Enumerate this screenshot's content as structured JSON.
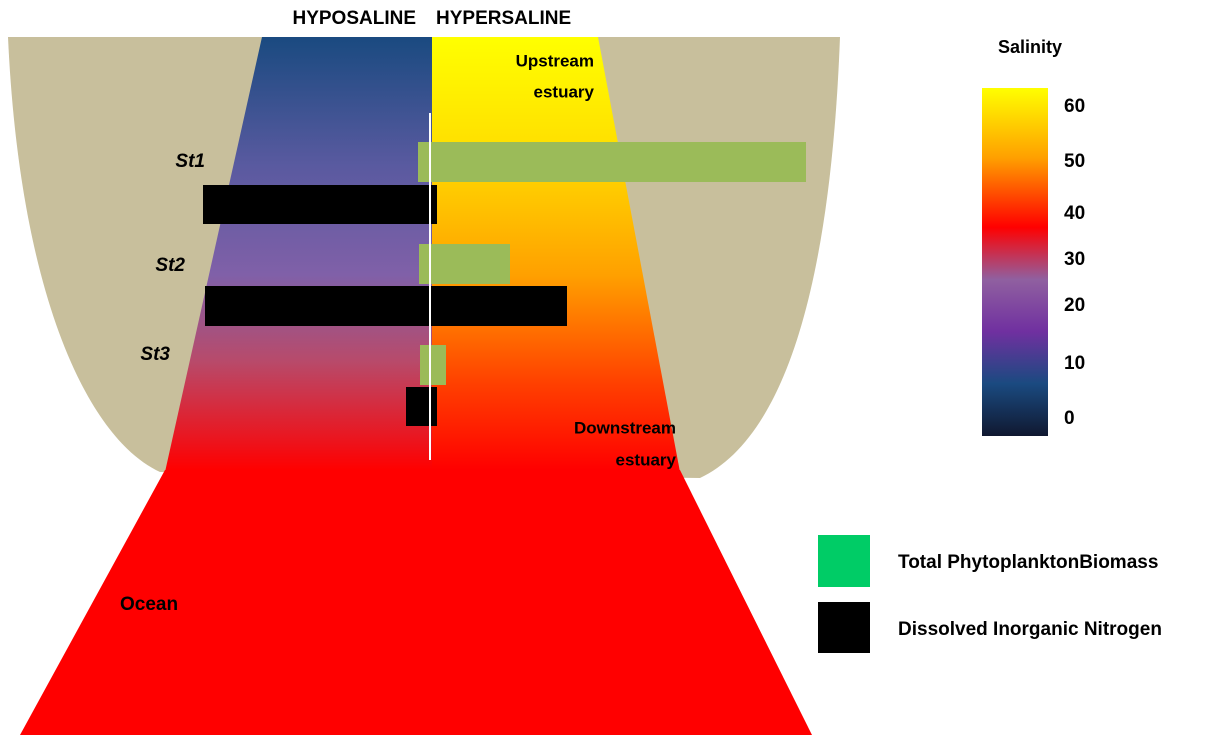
{
  "header": {
    "left": "HYPOSALINE",
    "right": "HYPERSALINE"
  },
  "regions": {
    "upstream": [
      "Upstream",
      "estuary"
    ],
    "downstream": [
      "Downstream",
      "estuary"
    ],
    "ocean": "Ocean"
  },
  "stations": [
    "St1",
    "St2",
    "St3"
  ],
  "colorbar": {
    "title": "Salinity",
    "ticks": [
      "60",
      "50",
      "40",
      "30",
      "20",
      "10",
      "0"
    ]
  },
  "legend": [
    "Total PhytoplanktonBiomass",
    "Dissolved Inorganic Nitrogen"
  ]
}
